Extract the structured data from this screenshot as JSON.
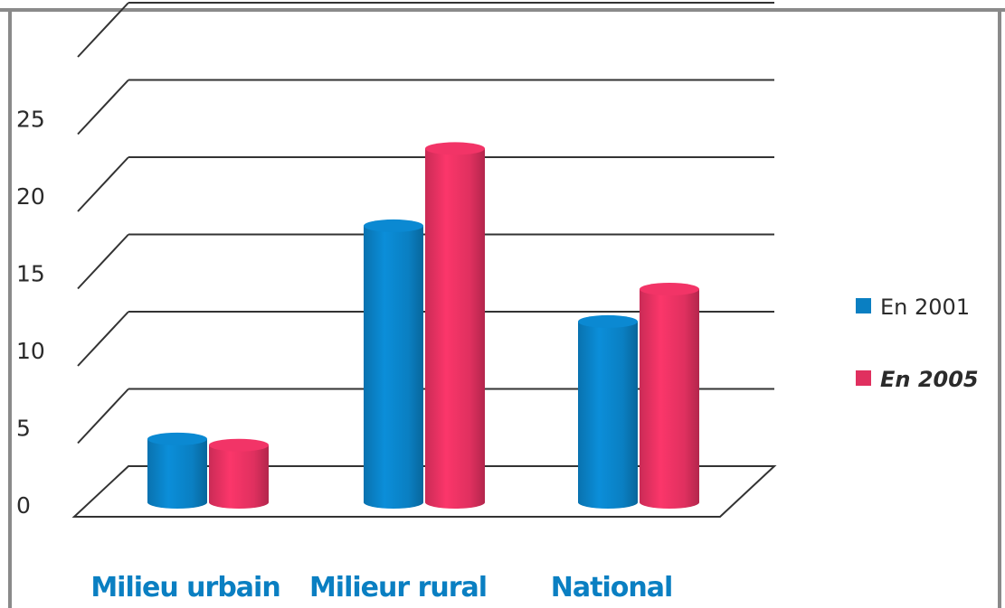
{
  "chart_data": {
    "type": "bar",
    "categories": [
      "Milieu urbain",
      "Milieur rural",
      "National"
    ],
    "series": [
      {
        "name": "En 2001",
        "values": [
          4.1,
          17.9,
          11.7
        ],
        "color": "#0a7fc2"
      },
      {
        "name": "En 2005",
        "values": [
          3.7,
          22.9,
          13.8
        ],
        "color": "#e0305f"
      }
    ],
    "yticks": [
      0,
      5,
      10,
      15,
      20,
      25
    ],
    "ylim": [
      0,
      25
    ],
    "grid": true,
    "legend_position": "right",
    "style": "3d-cylinder"
  }
}
